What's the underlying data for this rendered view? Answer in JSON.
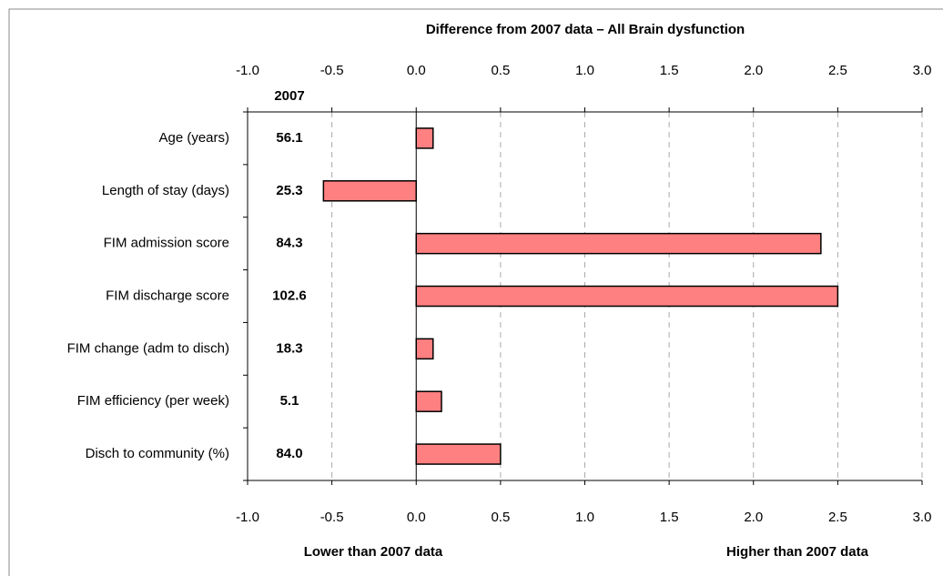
{
  "chart_data": {
    "type": "bar",
    "orientation": "horizontal",
    "title": "Difference from 2007 data – All Brain dysfunction",
    "categories": [
      "Age (years)",
      "Length of stay (days)",
      "FIM admission score",
      "FIM discharge score",
      "FIM change (adm to disch)",
      "FIM efficiency (per week)",
      "Disch to community (%)"
    ],
    "values": [
      0.1,
      -0.55,
      2.4,
      2.5,
      0.1,
      0.15,
      0.5
    ],
    "color": "#ff8080",
    "baseline_title": "2007",
    "baseline_labels": [
      "56.1",
      "25.3",
      "84.3",
      "102.6",
      "18.3",
      "5.1",
      "84.0"
    ],
    "xlim": [
      -1,
      3
    ],
    "xticks": [
      {
        "value": -1,
        "label": "-1.0"
      },
      -0.5,
      {
        "value": 0,
        "label": "0.0"
      },
      0.5,
      {
        "value": 1,
        "label": "1.0"
      },
      1.5,
      {
        "value": 2,
        "label": "2.0"
      },
      2.5,
      {
        "value": 3,
        "label": "3.0"
      }
    ],
    "grid": true,
    "annotations": [
      "Lower than 2007 data",
      "Higher than 2007 data"
    ]
  }
}
